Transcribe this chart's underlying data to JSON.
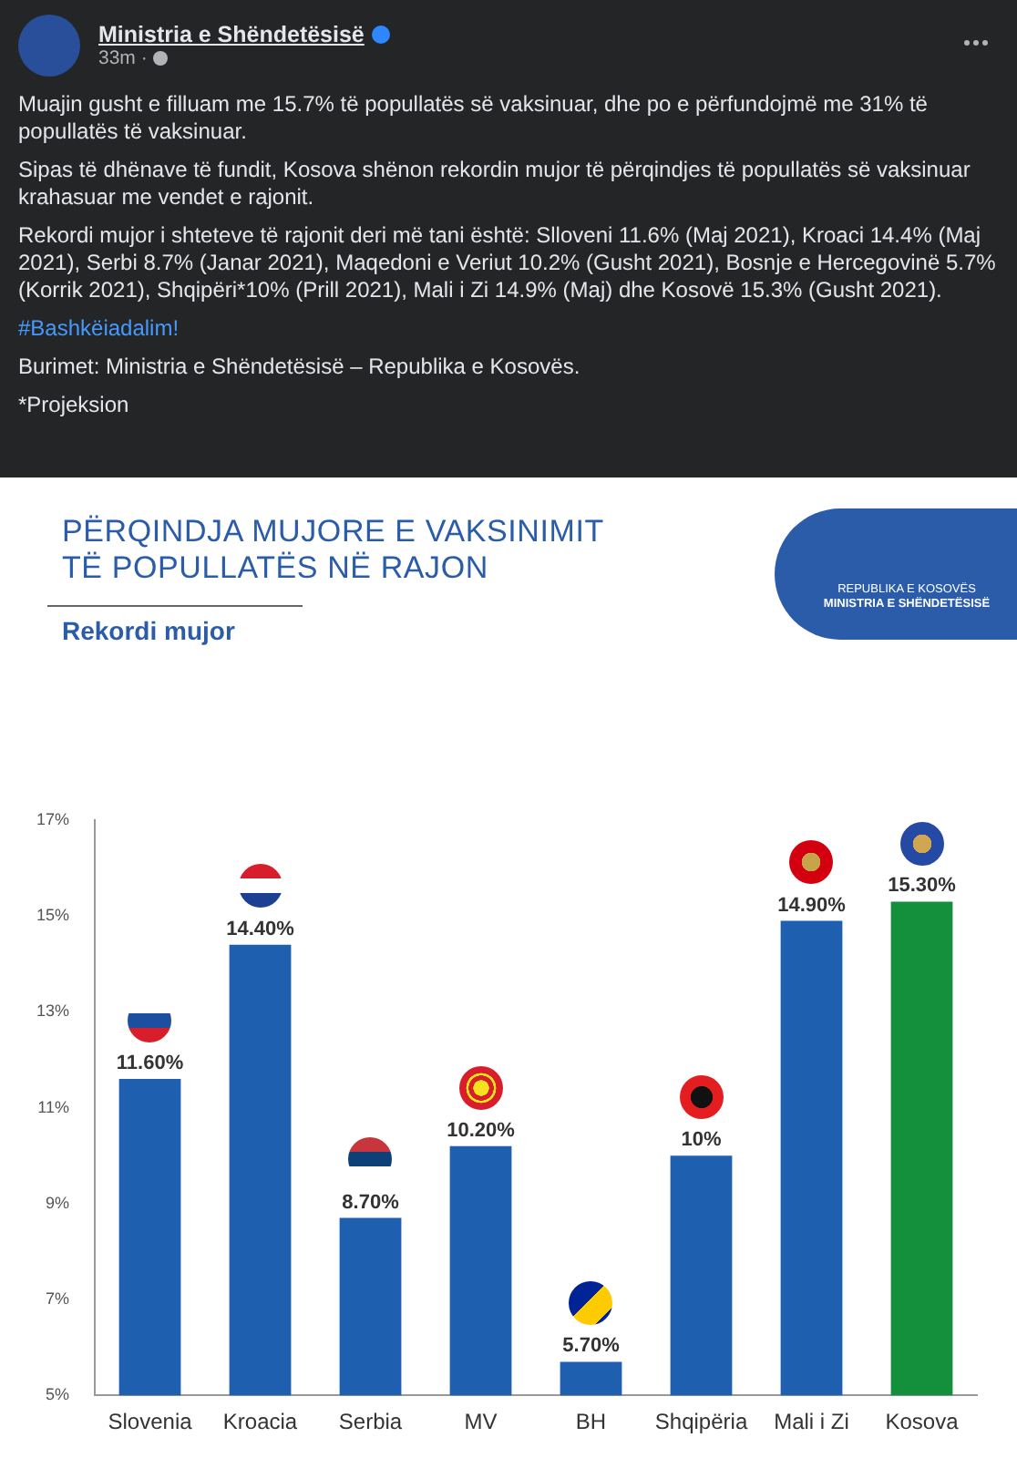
{
  "chart_data": {
    "type": "bar",
    "title": "PËRQINDJA MUJORE E VAKSINIMIT TË POPULLATËS NË RAJON",
    "subtitle": "Rekordi mujor",
    "categories": [
      "Slovenia",
      "Kroacia",
      "Serbia",
      "MV",
      "BH",
      "Shqipëria",
      "Mali i Zi",
      "Kosova"
    ],
    "values": [
      11.6,
      14.4,
      8.7,
      10.2,
      5.7,
      10,
      14.9,
      15.3
    ],
    "colors": [
      "#1f5fb0",
      "#1f5fb0",
      "#1f5fb0",
      "#1f5fb0",
      "#1f5fb0",
      "#1f5fb0",
      "#1f5fb0",
      "#14903c"
    ],
    "value_labels": [
      "11.60%",
      "14.40%",
      "8.70%",
      "10.20%",
      "5.70%",
      "10%",
      "14.90%",
      "15.30%"
    ],
    "ylim": [
      5,
      17
    ],
    "yticks": [
      {
        "value": 5,
        "label": "5%"
      },
      {
        "value": 7,
        "label": "7%"
      },
      {
        "value": 9,
        "label": "9%"
      },
      {
        "value": 11,
        "label": "11%"
      },
      {
        "value": 13,
        "label": "13%"
      },
      {
        "value": 15,
        "label": "15%"
      },
      {
        "value": 17,
        "label": "17%"
      }
    ],
    "grid": false,
    "legend": false,
    "annotations": [
      "Ministria e Shëndetësisë",
      "33m ·",
      "Muajin gusht e filluam me 15.7% të  popullatës së vaksinuar, dhe po e përfundojmë me 31% të popullatës të vaksinuar.",
      "Sipas të dhënave të fundit, Kosova shënon rekordin mujor të përqindjes të popullatës së vaksinuar krahasuar me vendet e rajonit.",
      "Rekordi mujor i shteteve të rajonit deri më tani është: Slloveni 11.6% (Maj 2021), Kroaci 14.4% (Maj 2021), Serbi 8.7% (Janar 2021), Maqedoni e Veriut 10.2% (Gusht 2021), Bosnje e Hercegovinë 5.7% (Korrik 2021), Shqipëri*10% (Prill 2021), Mali i Zi 14.9% (Maj) dhe Kosovë 15.3% (Gusht 2021).",
      "#Bashkëiadalim!",
      "Burimet: Ministria e Shëndetësisë – Republika e Kosovës.",
      "*Projeksion",
      "REPUBLIKA E KOSOVËS",
      "MINISTRIA E SHËNDETËSISË"
    ]
  }
}
